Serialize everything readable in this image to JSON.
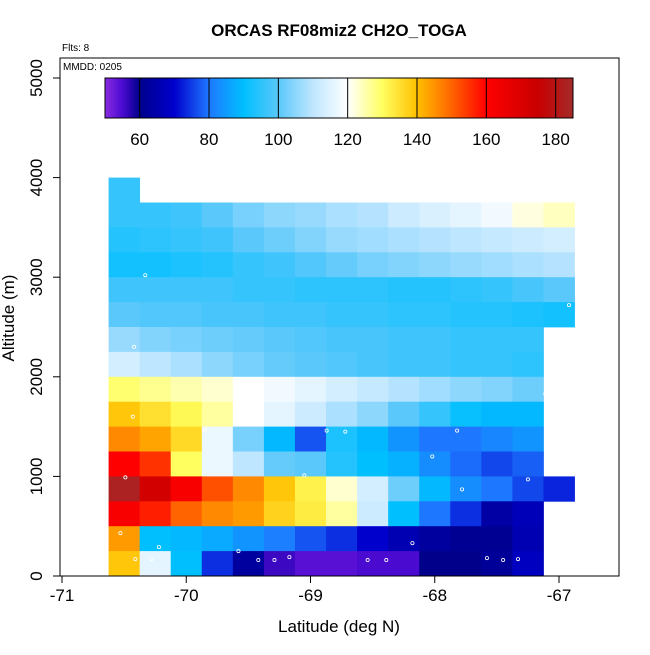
{
  "chart_data": {
    "type": "heatmap",
    "title": "ORCAS RF08miz2 CH2O_TOGA",
    "subtitle_flights": "Flts: 8",
    "subtitle_date": "MMDD: 0205",
    "xlabel": "Latitude (deg N)",
    "ylabel": "Altitude (m)",
    "xlim": [
      -71,
      -66.5
    ],
    "ylim": [
      0,
      5200
    ],
    "x_ticks": [
      -71,
      -70,
      -69,
      -68,
      -67
    ],
    "x_tick_labels": [
      "-71",
      "-70",
      "-69",
      "-68",
      "-67"
    ],
    "y_ticks": [
      0,
      1000,
      2000,
      3000,
      4000,
      5000
    ],
    "y_tick_labels": [
      "0",
      "1000",
      "2000",
      "3000",
      "4000",
      "5000"
    ],
    "colorbar": {
      "range": [
        50,
        185
      ],
      "ticks": [
        60,
        80,
        100,
        120,
        140,
        160,
        180
      ],
      "tick_labels": [
        "60",
        "80",
        "100",
        "120",
        "140",
        "160",
        "180"
      ],
      "stops": [
        {
          "v": 50,
          "c": "#8a2be2"
        },
        {
          "v": 55,
          "c": "#4b0ad0"
        },
        {
          "v": 60,
          "c": "#00008b"
        },
        {
          "v": 70,
          "c": "#0000cd"
        },
        {
          "v": 80,
          "c": "#1e78ff"
        },
        {
          "v": 90,
          "c": "#00bfff"
        },
        {
          "v": 100,
          "c": "#5ac8fa"
        },
        {
          "v": 110,
          "c": "#bfe6ff"
        },
        {
          "v": 120,
          "c": "#ffffff"
        },
        {
          "v": 130,
          "c": "#ffff60"
        },
        {
          "v": 140,
          "c": "#ffc000"
        },
        {
          "v": 150,
          "c": "#ff6400"
        },
        {
          "v": 160,
          "c": "#ff0000"
        },
        {
          "v": 175,
          "c": "#c80000"
        },
        {
          "v": 185,
          "c": "#a52a2a"
        }
      ]
    },
    "cell_width_deg": 0.25,
    "cell_height_m": 250,
    "grid": [
      {
        "alt": 3875,
        "lats": [
          -70.5
        ],
        "values": [
          96
        ]
      },
      {
        "alt": 3625,
        "lats": [
          -70.5,
          -70.25,
          -70,
          -69.75,
          -69.5,
          -69.25,
          -69,
          -68.75,
          -68.5,
          -68.25,
          -68,
          -67.75,
          -67.5,
          -67.25,
          -67
        ],
        "values": [
          96,
          96,
          97,
          100,
          103,
          105,
          106,
          108,
          109,
          112,
          114,
          116,
          118,
          122,
          124
        ]
      },
      {
        "alt": 3375,
        "lats": [
          -70.5,
          -70.25,
          -70,
          -69.75,
          -69.5,
          -69.25,
          -69,
          -68.75,
          -68.5,
          -68.25,
          -68,
          -67.75,
          -67.5,
          -67.25,
          -67
        ],
        "values": [
          94,
          95,
          96,
          97,
          100,
          102,
          104,
          106,
          107,
          108,
          109,
          110,
          111,
          112,
          113
        ]
      },
      {
        "alt": 3125,
        "lats": [
          -70.5,
          -70.25,
          -70,
          -69.75,
          -69.5,
          -69.25,
          -69,
          -68.75,
          -68.5,
          -68.25,
          -68,
          -67.75,
          -67.5,
          -67.25,
          -67
        ],
        "values": [
          92,
          92,
          93,
          94,
          96,
          97,
          99,
          101,
          103,
          104,
          105,
          106,
          107,
          108,
          109
        ]
      },
      {
        "alt": 2875,
        "lats": [
          -70.5,
          -70.25,
          -70,
          -69.75,
          -69.5,
          -69.25,
          -69,
          -68.75,
          -68.5,
          -68.25,
          -68,
          -67.75,
          -67.5,
          -67.25,
          -67
        ],
        "values": [
          97,
          97,
          97,
          97,
          96,
          96,
          95,
          95,
          95,
          94,
          94,
          95,
          96,
          98,
          100
        ]
      },
      {
        "alt": 2625,
        "lats": [
          -70.5,
          -70.25,
          -70,
          -69.75,
          -69.5,
          -69.25,
          -69,
          -68.75,
          -68.5,
          -68.25,
          -68,
          -67.75,
          -67.5,
          -67.25,
          -67
        ],
        "values": [
          100,
          99,
          99,
          98,
          98,
          97,
          97,
          96,
          96,
          95,
          95,
          94,
          94,
          93,
          92
        ]
      },
      {
        "alt": 2375,
        "lats": [
          -70.5,
          -70.25,
          -70,
          -69.75,
          -69.5,
          -69.25,
          -69,
          -68.75,
          -68.5,
          -68.25,
          -68,
          -67.75,
          -67.5,
          -67.25
        ],
        "values": [
          106,
          104,
          103,
          102,
          101,
          100,
          99,
          98,
          98,
          97,
          97,
          96,
          96,
          96
        ]
      },
      {
        "alt": 2125,
        "lats": [
          -70.5,
          -70.25,
          -70,
          -69.75,
          -69.5,
          -69.25,
          -69,
          -68.75,
          -68.5,
          -68.25,
          -68,
          -67.75,
          -67.5,
          -67.25
        ],
        "values": [
          113,
          110,
          108,
          105,
          103,
          101,
          100,
          99,
          98,
          97,
          97,
          96,
          96,
          95
        ]
      },
      {
        "alt": 1875,
        "lats": [
          -70.5,
          -70.25,
          -70,
          -69.75,
          -69.5,
          -69.25,
          -69,
          -68.75,
          -68.5,
          -68.25,
          -68,
          -67.75,
          -67.5,
          -67.25
        ],
        "values": [
          129,
          127,
          125,
          123,
          120,
          118,
          116,
          113,
          111,
          109,
          107,
          105,
          104,
          102
        ]
      },
      {
        "alt": 1625,
        "lats": [
          -70.5,
          -70.25,
          -70,
          -69.75,
          -69.5,
          -69.25,
          -69,
          -68.75,
          -68.5,
          -68.25,
          -68,
          -67.75,
          -67.5,
          -67.25
        ],
        "values": [
          139,
          135,
          131,
          126,
          120,
          116,
          112,
          108,
          105,
          100,
          96,
          91,
          89,
          89
        ]
      },
      {
        "alt": 1375,
        "lats": [
          -70.5,
          -70.25,
          -70,
          -69.75,
          -69.5,
          -69.25,
          -69,
          -68.75,
          -68.5,
          -68.25,
          -68,
          -67.75,
          -67.5,
          -67.25
        ],
        "values": [
          146,
          143,
          136,
          117,
          103,
          89,
          77,
          93,
          89,
          84,
          80,
          80,
          82,
          84
        ]
      },
      {
        "alt": 1125,
        "lats": [
          -70.5,
          -70.25,
          -70,
          -69.75,
          -69.5,
          -69.25,
          -69,
          -68.75,
          -68.5,
          -68.25,
          -68,
          -67.75,
          -67.5,
          -67.25
        ],
        "values": [
          160,
          155,
          130,
          117,
          110,
          101,
          100,
          94,
          90,
          88,
          83,
          79,
          76,
          78
        ]
      },
      {
        "alt": 875,
        "lats": [
          -70.5,
          -70.25,
          -70,
          -69.75,
          -69.5,
          -69.25,
          -69,
          -68.75,
          -68.5,
          -68.25,
          -68,
          -67.75,
          -67.5,
          -67.25,
          -67
        ],
        "values": [
          183,
          172,
          162,
          152,
          146,
          139,
          132,
          123,
          113,
          102,
          89,
          83,
          80,
          76,
          73
        ]
      },
      {
        "alt": 625,
        "lats": [
          -70.5,
          -70.25,
          -70,
          -69.75,
          -69.5,
          -69.25,
          -69,
          -68.75,
          -68.5,
          -68.25,
          -68,
          -67.75,
          -67.5,
          -67.25
        ],
        "values": [
          162,
          157,
          150,
          146,
          144,
          137,
          133,
          126,
          112,
          90,
          80,
          74,
          64,
          67
        ]
      },
      {
        "alt": 375,
        "lats": [
          -70.5,
          -70.25,
          -70,
          -69.75,
          -69.5,
          -69.25,
          -69,
          -68.75,
          -68.5,
          -68.25,
          -68,
          -67.75,
          -67.5,
          -67.25
        ],
        "values": [
          144,
          90,
          89,
          87,
          84,
          81,
          77,
          74,
          70,
          66,
          63,
          61,
          61,
          66
        ]
      },
      {
        "alt": 125,
        "lats": [
          -70.5,
          -70.25,
          -70,
          -69.75,
          -69.5,
          -69.25,
          -69,
          -68.75,
          -68.5,
          -68.25,
          -68,
          -67.75,
          -67.5,
          -67.25
        ],
        "values": [
          139,
          116,
          90,
          74,
          63,
          56,
          54,
          54,
          55,
          55,
          60,
          60,
          62,
          68
        ]
      }
    ],
    "sample_points": [
      {
        "lat": -70.28,
        "alt": 3780
      },
      {
        "lat": -70.33,
        "alt": 3020
      },
      {
        "lat": -70.42,
        "alt": 2300
      },
      {
        "lat": -66.92,
        "alt": 2720
      },
      {
        "lat": -67.11,
        "alt": 1830
      },
      {
        "lat": -70.43,
        "alt": 1600
      },
      {
        "lat": -69.85,
        "alt": 1470
      },
      {
        "lat": -68.87,
        "alt": 1460
      },
      {
        "lat": -68.72,
        "alt": 1450
      },
      {
        "lat": -67.82,
        "alt": 1460
      },
      {
        "lat": -68.02,
        "alt": 1200
      },
      {
        "lat": -70.49,
        "alt": 990
      },
      {
        "lat": -69.05,
        "alt": 1010
      },
      {
        "lat": -67.25,
        "alt": 970
      },
      {
        "lat": -67.78,
        "alt": 870
      },
      {
        "lat": -70.53,
        "alt": 430
      },
      {
        "lat": -70.22,
        "alt": 290
      },
      {
        "lat": -69.58,
        "alt": 250
      },
      {
        "lat": -68.18,
        "alt": 330
      },
      {
        "lat": -70.41,
        "alt": 170
      },
      {
        "lat": -70.28,
        "alt": 170
      },
      {
        "lat": -69.42,
        "alt": 160
      },
      {
        "lat": -69.29,
        "alt": 160
      },
      {
        "lat": -69.17,
        "alt": 190
      },
      {
        "lat": -68.54,
        "alt": 160
      },
      {
        "lat": -68.39,
        "alt": 160
      },
      {
        "lat": -67.58,
        "alt": 180
      },
      {
        "lat": -67.45,
        "alt": 160
      },
      {
        "lat": -67.33,
        "alt": 170
      }
    ]
  }
}
